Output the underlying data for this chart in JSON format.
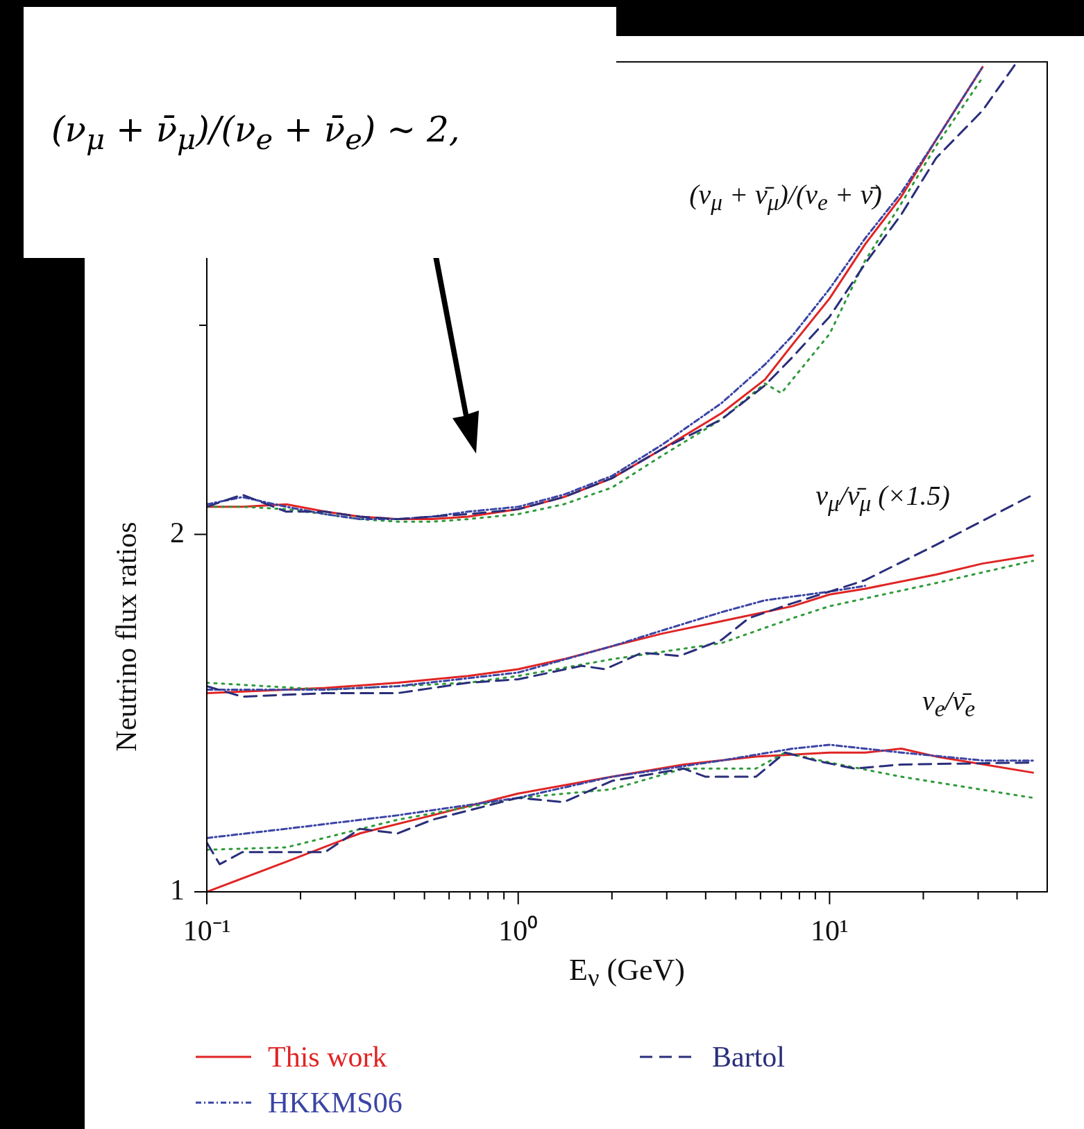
{
  "chart_data": {
    "type": "line",
    "xlabel": "E$_{ν}$ (GeV)",
    "ylabel": "Neutrino flux ratios",
    "log": "xy",
    "grid": false,
    "legend": "bottom",
    "xlim": [
      0.1,
      50
    ],
    "ylim": [
      1,
      5
    ],
    "xticks": [
      {
        "value": 0.1,
        "label": "10⁻¹"
      },
      {
        "value": 0.2,
        "label": null
      },
      {
        "value": 0.3,
        "label": null
      },
      {
        "value": 0.4,
        "label": null
      },
      {
        "value": 0.5,
        "label": null
      },
      {
        "value": 0.6,
        "label": null
      },
      {
        "value": 0.7,
        "label": null
      },
      {
        "value": 0.8,
        "label": null
      },
      {
        "value": 0.9,
        "label": null
      },
      {
        "value": 1,
        "label": "10⁰"
      },
      {
        "value": 2,
        "label": null
      },
      {
        "value": 3,
        "label": null
      },
      {
        "value": 4,
        "label": null
      },
      {
        "value": 5,
        "label": null
      },
      {
        "value": 6,
        "label": null
      },
      {
        "value": 7,
        "label": null
      },
      {
        "value": 8,
        "label": null
      },
      {
        "value": 9,
        "label": null
      },
      {
        "value": 10,
        "label": "10¹"
      },
      {
        "value": 20,
        "label": null
      },
      {
        "value": 30,
        "label": null
      },
      {
        "value": 40,
        "label": null
      }
    ],
    "yticks": [
      1,
      2,
      {
        "value": 3,
        "label": null
      },
      {
        "value": 4,
        "label": null
      }
    ],
    "annotations": [
      "(ν$_{μ}$ + ν̄$_{μ}$)/(ν$_{e}$ + ν̄$_{e}$) ~ 2,",
      "(ν$_{μ}$ + ν̄$_{μ}$)/(ν$_{e}$ + ν̄)",
      "ν$_{μ}$/ν̄$_{μ}$ (×1.5)",
      "ν$_{e}$/ν̄$_{e}$"
    ],
    "series": [
      {
        "name": "This work",
        "color": "#e02424",
        "line_style": "solid",
        "x": [
          0.1,
          0.13,
          0.18,
          0.24,
          0.31,
          0.41,
          0.53,
          0.69,
          1,
          1.4,
          2,
          2.9,
          4.5,
          6.2,
          7.6,
          10,
          13,
          17,
          22,
          31
        ],
        "values": [
          2.11,
          2.11,
          2.12,
          2.09,
          2.07,
          2.06,
          2.06,
          2.07,
          2.1,
          2.15,
          2.23,
          2.36,
          2.53,
          2.7,
          2.89,
          3.16,
          3.51,
          3.85,
          4.3,
          4.95
        ]
      },
      {
        "name": "Bartol",
        "color": "#2a2e7a",
        "line_style": "dashed",
        "x": [
          0.1,
          0.13,
          0.18,
          0.24,
          0.31,
          0.41,
          0.53,
          0.69,
          1,
          1.4,
          2,
          2.9,
          4.5,
          6.2,
          7.6,
          10,
          13,
          17,
          22,
          31,
          40
        ],
        "values": [
          2.11,
          2.16,
          2.09,
          2.09,
          2.07,
          2.06,
          2.07,
          2.08,
          2.1,
          2.15,
          2.23,
          2.36,
          2.5,
          2.67,
          2.82,
          3.05,
          3.38,
          3.72,
          4.15,
          4.55,
          5.0
        ]
      },
      {
        "name": "HKKMS06",
        "color": "#3b45a5",
        "line_style": "dashdot",
        "x": [
          0.1,
          0.13,
          0.18,
          0.24,
          0.31,
          0.41,
          0.53,
          0.69,
          1,
          1.4,
          2,
          2.9,
          4.5,
          6.2,
          7.6,
          10,
          13,
          17,
          22,
          31
        ],
        "values": [
          2.12,
          2.15,
          2.11,
          2.08,
          2.06,
          2.06,
          2.07,
          2.09,
          2.11,
          2.16,
          2.24,
          2.38,
          2.58,
          2.78,
          2.94,
          3.22,
          3.55,
          3.88,
          4.3,
          4.95
        ]
      },
      {
        "color": "#2f9a3a",
        "line_style": "dotted",
        "x": [
          0.1,
          0.13,
          0.18,
          0.24,
          0.31,
          0.41,
          0.53,
          0.69,
          1,
          1.4,
          2,
          2.9,
          4.5,
          6.2,
          7,
          10,
          13,
          17,
          22,
          31
        ],
        "values": [
          2.11,
          2.11,
          2.1,
          2.08,
          2.06,
          2.05,
          2.05,
          2.06,
          2.08,
          2.12,
          2.19,
          2.33,
          2.5,
          2.68,
          2.63,
          2.95,
          3.4,
          3.8,
          4.25,
          4.85
        ]
      },
      {
        "color": "#e02424",
        "line_style": "solid",
        "x": [
          0.1,
          0.18,
          0.24,
          0.41,
          0.69,
          1,
          1.4,
          2,
          2.9,
          4.5,
          7.6,
          10,
          13,
          22,
          31,
          45
        ],
        "values": [
          1.47,
          1.48,
          1.485,
          1.5,
          1.52,
          1.54,
          1.57,
          1.61,
          1.65,
          1.69,
          1.74,
          1.78,
          1.8,
          1.85,
          1.89,
          1.92
        ]
      },
      {
        "color": "#2a2e7a",
        "line_style": "dashed",
        "x": [
          0.1,
          0.13,
          0.24,
          0.41,
          0.69,
          1,
          1.6,
          1.9,
          2.5,
          3.3,
          4.5,
          5.5,
          7.6,
          10,
          13,
          22,
          45
        ],
        "values": [
          1.49,
          1.46,
          1.47,
          1.47,
          1.5,
          1.51,
          1.55,
          1.54,
          1.59,
          1.58,
          1.63,
          1.7,
          1.75,
          1.79,
          1.83,
          1.96,
          2.16
        ]
      },
      {
        "color": "#3b45a5",
        "line_style": "dashdot",
        "x": [
          0.1,
          0.24,
          0.41,
          1,
          2,
          2.9,
          4.5,
          6.2,
          10,
          13
        ],
        "values": [
          1.48,
          1.48,
          1.49,
          1.53,
          1.61,
          1.66,
          1.72,
          1.76,
          1.79,
          1.81
        ]
      },
      {
        "color": "#2f9a3a",
        "line_style": "dotted",
        "x": [
          0.1,
          0.24,
          0.69,
          1,
          2,
          4.5,
          7.6,
          10,
          22,
          45
        ],
        "values": [
          1.5,
          1.48,
          1.5,
          1.52,
          1.57,
          1.62,
          1.7,
          1.74,
          1.82,
          1.9
        ]
      },
      {
        "color": "#e02424",
        "line_style": "solid",
        "x": [
          0.1,
          0.18,
          0.31,
          0.53,
          1,
          2,
          3.4,
          5.8,
          10,
          13,
          17,
          22,
          45
        ],
        "values": [
          1.0,
          1.06,
          1.12,
          1.16,
          1.21,
          1.25,
          1.28,
          1.3,
          1.31,
          1.31,
          1.32,
          1.3,
          1.26
        ]
      },
      {
        "color": "#2a2e7a",
        "line_style": "dashed",
        "x": [
          0.1,
          0.11,
          0.13,
          0.24,
          0.31,
          0.41,
          0.53,
          1,
          1.4,
          2,
          3.4,
          4,
          5.8,
          7.2,
          9,
          12,
          17,
          45
        ],
        "values": [
          1.1,
          1.055,
          1.08,
          1.08,
          1.13,
          1.12,
          1.15,
          1.2,
          1.19,
          1.24,
          1.27,
          1.25,
          1.25,
          1.31,
          1.29,
          1.27,
          1.28,
          1.285
        ]
      },
      {
        "color": "#3b45a5",
        "line_style": "dashdot",
        "x": [
          0.1,
          0.18,
          0.41,
          1,
          2,
          4.5,
          7.6,
          10,
          17,
          31,
          45
        ],
        "values": [
          1.11,
          1.13,
          1.16,
          1.2,
          1.25,
          1.29,
          1.32,
          1.33,
          1.31,
          1.29,
          1.29
        ]
      },
      {
        "color": "#2f9a3a",
        "line_style": "dotted",
        "x": [
          0.1,
          0.18,
          0.41,
          1,
          2,
          3.4,
          5.8,
          7.2,
          10,
          17,
          45
        ],
        "values": [
          1.085,
          1.09,
          1.15,
          1.2,
          1.22,
          1.27,
          1.27,
          1.31,
          1.285,
          1.25,
          1.2
        ]
      }
    ]
  }
}
